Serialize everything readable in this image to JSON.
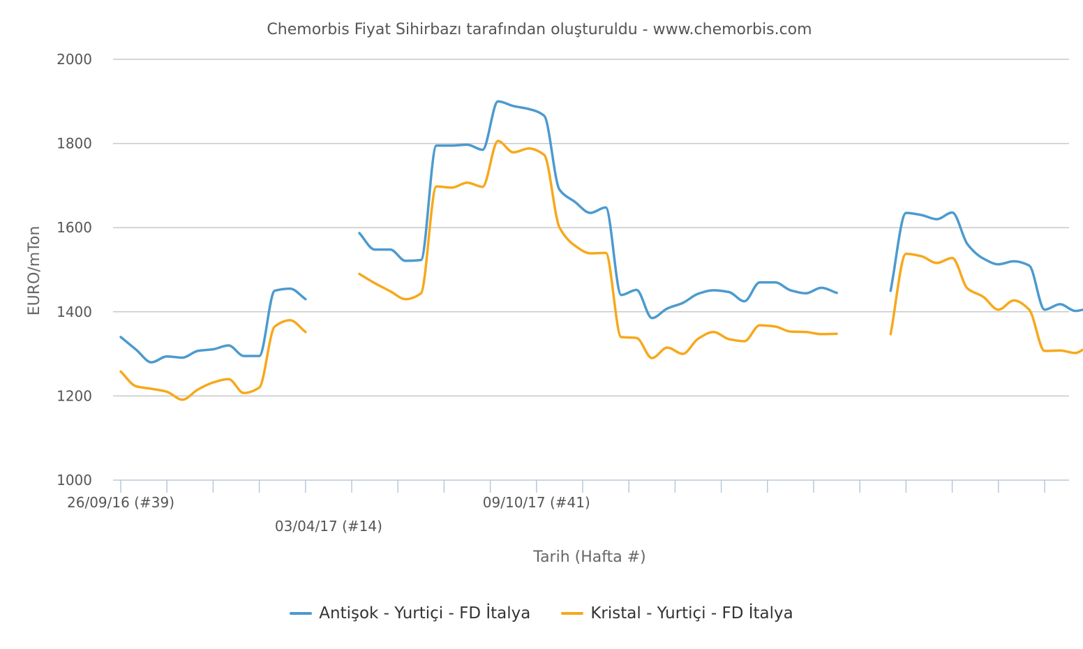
{
  "chart_data": {
    "type": "line",
    "title": "Chemorbis Fiyat Sihirbazı tarafından oluşturuldu - www.chemorbis.com",
    "xlabel": "Tarih (Hafta #)",
    "ylabel": "EURO/mTon",
    "ylim": [
      1000,
      2000
    ],
    "yticks": [
      "1000",
      "1200",
      "1400",
      "1600",
      "1800",
      "2000"
    ],
    "grid": true,
    "legend_position": "bottom",
    "x_tick_labels": [
      {
        "x": "26/09/16",
        "label": "26/09/16 (#39)",
        "row": 1
      },
      {
        "x": "03/04/17",
        "label": "03/04/17 (#14)",
        "row": 2
      },
      {
        "x": "09/10/17",
        "label": "09/10/17 (#41)",
        "row": 1
      }
    ],
    "x_major_ticks": [
      "26/09/16",
      "07/11/16",
      "19/12/16",
      "30/01/17",
      "13/03/17",
      "24/04/17",
      "05/06/17",
      "17/07/17",
      "28/08/17",
      "09/10/17",
      "20/11/17",
      "01/01/18",
      "12/02/18",
      "26/03/18",
      "07/05/18",
      "18/06/18",
      "30/07/18",
      "10/09/18",
      "22/10/18",
      "03/12/18",
      "14/01/19"
    ],
    "x_range": [
      "26/09/16",
      "18/02/19"
    ],
    "series": [
      {
        "name": "Antişok - Yurtiçi - FD İtalya",
        "color": "#4C9ACF",
        "values": [
          [
            "26/09/16",
            1340
          ],
          [
            "10/10/16",
            1310
          ],
          [
            "24/10/16",
            1280
          ],
          [
            "07/11/16",
            1294
          ],
          [
            "21/11/16",
            1291
          ],
          [
            "05/12/16",
            1307
          ],
          [
            "19/12/16",
            1311
          ],
          [
            "02/01/17",
            1320
          ],
          [
            "16/01/17",
            1295
          ],
          [
            "30/01/17",
            1295
          ],
          [
            "13/02/17",
            1450
          ],
          [
            "27/02/17",
            1455
          ],
          [
            "13/03/17",
            1430
          ],
          null,
          [
            "01/05/17",
            1587
          ],
          [
            "15/05/17",
            1548
          ],
          [
            "29/05/17",
            1548
          ],
          [
            "12/06/17",
            1521
          ],
          [
            "26/06/17",
            1523
          ],
          [
            "10/07/17",
            1795
          ],
          [
            "24/07/17",
            1795
          ],
          [
            "07/08/17",
            1797
          ],
          [
            "21/08/17",
            1785
          ],
          [
            "04/09/17",
            1900
          ],
          [
            "18/09/17",
            1889
          ],
          [
            "02/10/17",
            1882
          ],
          [
            "16/10/17",
            1866
          ],
          [
            "30/10/17",
            1690
          ],
          [
            "13/11/17",
            1661
          ],
          [
            "27/11/17",
            1635
          ],
          [
            "11/12/17",
            1648
          ],
          [
            "25/12/17",
            1440
          ],
          [
            "08/01/18",
            1452
          ],
          [
            "22/01/18",
            1385
          ],
          [
            "05/02/18",
            1408
          ],
          [
            "19/02/18",
            1421
          ],
          [
            "05/03/18",
            1443
          ],
          [
            "19/03/18",
            1451
          ],
          [
            "02/04/18",
            1447
          ],
          [
            "16/04/18",
            1425
          ],
          [
            "30/04/18",
            1470
          ],
          [
            "14/05/18",
            1470
          ],
          [
            "28/05/18",
            1451
          ],
          [
            "11/06/18",
            1444
          ],
          [
            "25/06/18",
            1457
          ],
          [
            "09/07/18",
            1445
          ],
          null,
          [
            "27/08/18",
            1450
          ],
          [
            "10/09/18",
            1635
          ],
          [
            "24/09/18",
            1630
          ],
          [
            "08/10/18",
            1620
          ],
          [
            "22/10/18",
            1636
          ],
          [
            "05/11/18",
            1560
          ],
          [
            "19/11/18",
            1527
          ],
          [
            "03/12/18",
            1513
          ],
          [
            "17/12/18",
            1520
          ],
          [
            "31/12/18",
            1510
          ],
          [
            "14/01/19",
            1405
          ],
          [
            "28/01/19",
            1418
          ],
          [
            "11/02/19",
            1402
          ],
          [
            "18/02/19",
            1405
          ]
        ]
      },
      {
        "name": "Kristal - Yurtiçi - FD İtalya",
        "color": "#F7A81B",
        "values": [
          [
            "26/09/16",
            1258
          ],
          [
            "10/10/16",
            1223
          ],
          [
            "24/10/16",
            1217
          ],
          [
            "07/11/16",
            1210
          ],
          [
            "21/11/16",
            1191
          ],
          [
            "05/12/16",
            1215
          ],
          [
            "19/12/16",
            1232
          ],
          [
            "02/01/17",
            1240
          ],
          [
            "16/01/17",
            1207
          ],
          [
            "30/01/17",
            1220
          ],
          [
            "13/02/17",
            1365
          ],
          [
            "27/02/17",
            1380
          ],
          [
            "13/03/17",
            1352
          ],
          null,
          [
            "01/05/17",
            1490
          ],
          [
            "15/05/17",
            1468
          ],
          [
            "29/05/17",
            1449
          ],
          [
            "12/06/17",
            1430
          ],
          [
            "26/06/17",
            1444
          ],
          [
            "10/07/17",
            1698
          ],
          [
            "24/07/17",
            1695
          ],
          [
            "07/08/17",
            1707
          ],
          [
            "21/08/17",
            1697
          ],
          [
            "04/09/17",
            1806
          ],
          [
            "18/09/17",
            1779
          ],
          [
            "02/10/17",
            1788
          ],
          [
            "16/10/17",
            1773
          ],
          [
            "30/10/17",
            1600
          ],
          [
            "13/11/17",
            1557
          ],
          [
            "27/11/17",
            1539
          ],
          [
            "11/12/17",
            1540
          ],
          [
            "25/12/17",
            1340
          ],
          [
            "08/01/18",
            1338
          ],
          [
            "22/01/18",
            1290
          ],
          [
            "05/02/18",
            1315
          ],
          [
            "19/02/18",
            1300
          ],
          [
            "05/03/18",
            1336
          ],
          [
            "19/03/18",
            1352
          ],
          [
            "02/04/18",
            1335
          ],
          [
            "16/04/18",
            1330
          ],
          [
            "30/04/18",
            1368
          ],
          [
            "14/05/18",
            1365
          ],
          [
            "28/05/18",
            1353
          ],
          [
            "11/06/18",
            1352
          ],
          [
            "25/06/18",
            1347
          ],
          [
            "09/07/18",
            1348
          ],
          null,
          [
            "27/08/18",
            1347
          ],
          [
            "10/09/18",
            1538
          ],
          [
            "24/09/18",
            1532
          ],
          [
            "08/10/18",
            1516
          ],
          [
            "22/10/18",
            1528
          ],
          [
            "05/11/18",
            1455
          ],
          [
            "19/11/18",
            1436
          ],
          [
            "03/12/18",
            1405
          ],
          [
            "17/12/18",
            1427
          ],
          [
            "31/12/18",
            1405
          ],
          [
            "14/01/19",
            1307
          ],
          [
            "28/01/19",
            1308
          ],
          [
            "11/02/19",
            1302
          ],
          [
            "18/02/19",
            1310
          ]
        ]
      }
    ]
  }
}
